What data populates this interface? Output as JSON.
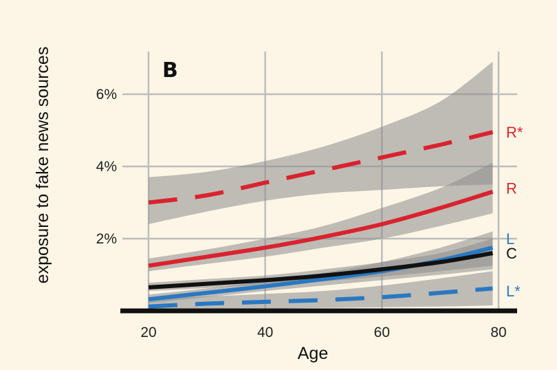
{
  "chart_data": {
    "type": "line",
    "panel_label": "B",
    "xlabel": "Age",
    "ylabel": "exposure to fake news sources",
    "x_ticks": [
      20,
      40,
      60,
      80
    ],
    "y_ticks": [
      {
        "value": 2,
        "label": "2%"
      },
      {
        "value": 4,
        "label": "4%"
      },
      {
        "value": 6,
        "label": "6%"
      }
    ],
    "xlim": [
      15,
      82
    ],
    "ylim": [
      0,
      6.9
    ],
    "grid": true,
    "x": [
      20,
      30,
      40,
      50,
      60,
      70,
      79
    ],
    "series": [
      {
        "name": "R*",
        "color": "#d9232e",
        "dashed": true,
        "values": [
          3.0,
          3.2,
          3.55,
          3.9,
          4.25,
          4.6,
          4.95
        ],
        "ci_lower": [
          2.4,
          2.75,
          3.05,
          3.25,
          3.35,
          3.45,
          3.5
        ],
        "ci_upper": [
          3.7,
          3.85,
          4.15,
          4.55,
          5.1,
          5.8,
          6.9
        ]
      },
      {
        "name": "R",
        "color": "#d9232e",
        "dashed": false,
        "values": [
          1.25,
          1.5,
          1.75,
          2.05,
          2.4,
          2.85,
          3.3
        ],
        "ci_lower": [
          1.1,
          1.3,
          1.5,
          1.75,
          2.0,
          2.35,
          2.7
        ],
        "ci_upper": [
          1.45,
          1.7,
          2.0,
          2.35,
          2.85,
          3.4,
          4.1
        ]
      },
      {
        "name": "L",
        "color": "#2a78c2",
        "dashed": false,
        "values": [
          0.32,
          0.5,
          0.68,
          0.88,
          1.1,
          1.4,
          1.75
        ],
        "ci_lower": [
          0.22,
          0.38,
          0.55,
          0.7,
          0.85,
          1.0,
          1.15
        ],
        "ci_upper": [
          0.45,
          0.62,
          0.82,
          1.05,
          1.35,
          1.75,
          2.2
        ]
      },
      {
        "name": "C",
        "color": "#111111",
        "dashed": false,
        "values": [
          0.65,
          0.75,
          0.85,
          0.98,
          1.15,
          1.35,
          1.6
        ],
        "ci_lower": [
          0.55,
          0.63,
          0.72,
          0.82,
          0.95,
          1.1,
          1.25
        ],
        "ci_upper": [
          0.78,
          0.88,
          0.98,
          1.15,
          1.35,
          1.6,
          2.0
        ]
      },
      {
        "name": "L*",
        "color": "#2a78c2",
        "dashed": true,
        "values": [
          0.12,
          0.2,
          0.25,
          0.3,
          0.38,
          0.5,
          0.62
        ],
        "ci_lower": [
          0.02,
          0.04,
          0.06,
          0.08,
          0.1,
          0.12,
          0.15
        ],
        "ci_upper": [
          0.35,
          0.4,
          0.47,
          0.55,
          0.7,
          0.9,
          1.1
        ]
      }
    ]
  }
}
